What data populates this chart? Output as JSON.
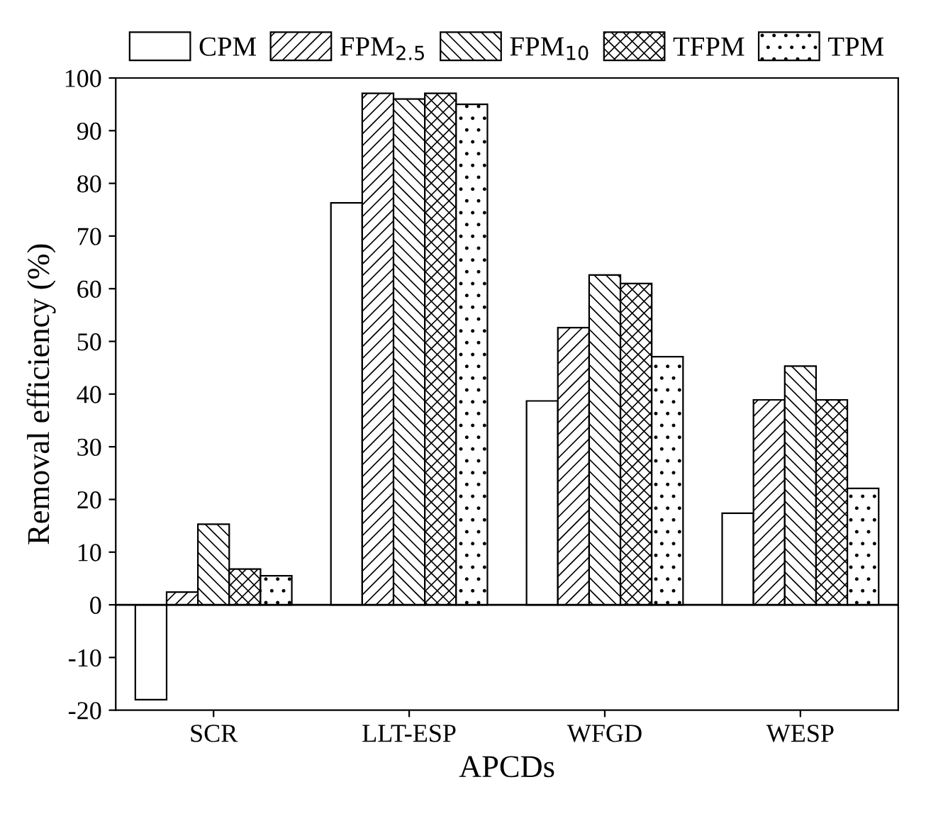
{
  "chart_data": {
    "type": "bar",
    "xlabel": "APCDs",
    "ylabel": "Removal efficiency (%)",
    "categories": [
      "SCR",
      "LLT-ESP",
      "WFGD",
      "WESP"
    ],
    "series": [
      {
        "name": "CPM",
        "color": "#ffffff",
        "values": [
          -18,
          76.3,
          38.7,
          17.4
        ]
      },
      {
        "name": "FPM$_{2.5}$",
        "color": "#000000",
        "values": [
          2.4,
          97.1,
          52.6,
          38.9
        ]
      },
      {
        "name": "FPM$_{10}$",
        "color": "#000000",
        "values": [
          15.3,
          96,
          62.6,
          45.3
        ]
      },
      {
        "name": "TFPM",
        "color": "#000000",
        "values": [
          6.8,
          97.1,
          61,
          38.9
        ]
      },
      {
        "name": "TPM",
        "color": "#000000",
        "values": [
          5.5,
          95,
          47.1,
          22.1
        ]
      }
    ],
    "ylim": [
      -20,
      100
    ],
    "yticks": [
      -20,
      -10,
      0,
      10,
      20,
      30,
      40,
      50,
      60,
      70,
      80,
      90,
      100
    ],
    "grid": false,
    "legend": "top",
    "ref_lines": [
      {
        "axis": "y",
        "value": 0,
        "label": null,
        "color": "#000000",
        "line_style": "solid"
      }
    ]
  }
}
